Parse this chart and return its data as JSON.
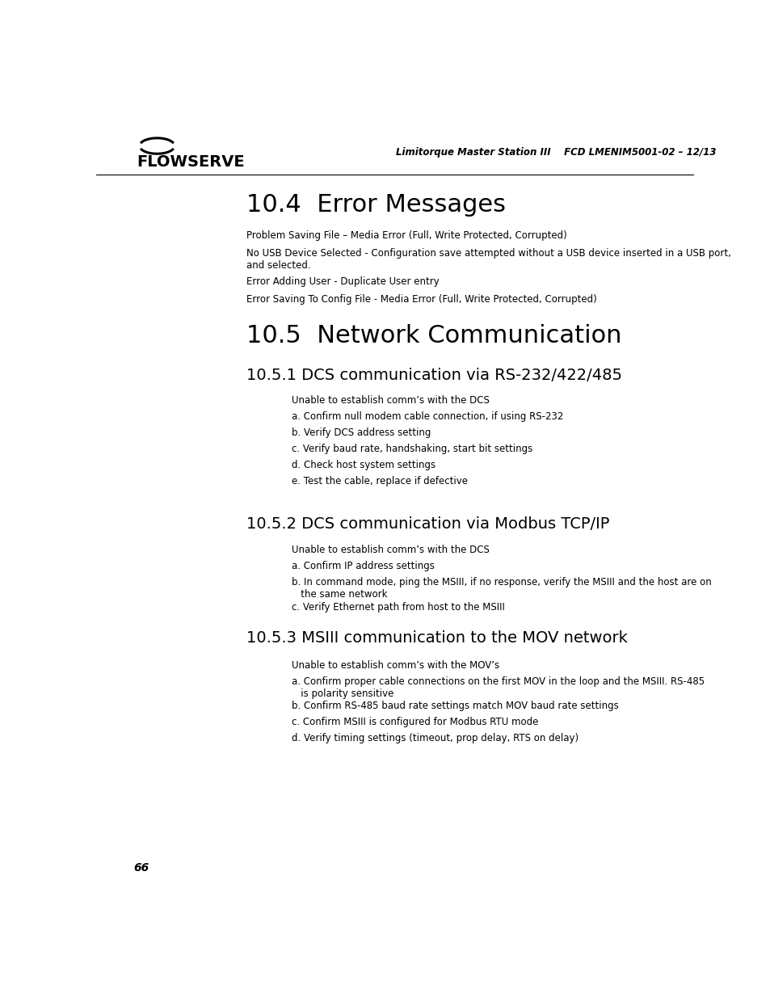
{
  "header_italic": "Limitorque Master Station III    FCD LMENIM5001-02 – 12/13",
  "page_number": "66",
  "bg_color": "#ffffff",
  "section_10_4_title": "10.4  Error Messages",
  "error_messages": [
    "Problem Saving File – Media Error (Full, Write Protected, Corrupted)",
    "No USB Device Selected - Configuration save attempted without a USB device inserted in a USB port,\nand selected.",
    "Error Adding User - Duplicate User entry",
    "Error Saving To Config File - Media Error (Full, Write Protected, Corrupted)"
  ],
  "section_10_5_title": "10.5  Network Communication",
  "section_10_5_1_title": "10.5.1 DCS communication via RS-232/422/485",
  "section_10_5_1_items": [
    "Unable to establish comm’s with the DCS",
    "a. Confirm null modem cable connection, if using RS-232",
    "b. Verify DCS address setting",
    "c. Verify baud rate, handshaking, start bit settings",
    "d. Check host system settings",
    "e. Test the cable, replace if defective"
  ],
  "section_10_5_2_title": "10.5.2 DCS communication via Modbus TCP/IP",
  "section_10_5_2_items": [
    "Unable to establish comm’s with the DCS",
    "a. Confirm IP address settings",
    "b. In command mode, ping the MSIII, if no response, verify the MSIII and the host are on\n   the same network",
    "c. Verify Ethernet path from host to the MSIII"
  ],
  "section_10_5_3_title": "10.5.3 MSIII communication to the MOV network",
  "section_10_5_3_items": [
    "Unable to establish comm’s with the MOV’s",
    "a. Confirm proper cable connections on the first MOV in the loop and the MSIII. RS-485\n   is polarity sensitive",
    "b. Confirm RS-485 baud rate settings match MOV baud rate settings",
    "c. Confirm MSIII is configured for Modbus RTU mode",
    "d. Verify timing settings (timeout, prop delay, RTS on delay)"
  ]
}
